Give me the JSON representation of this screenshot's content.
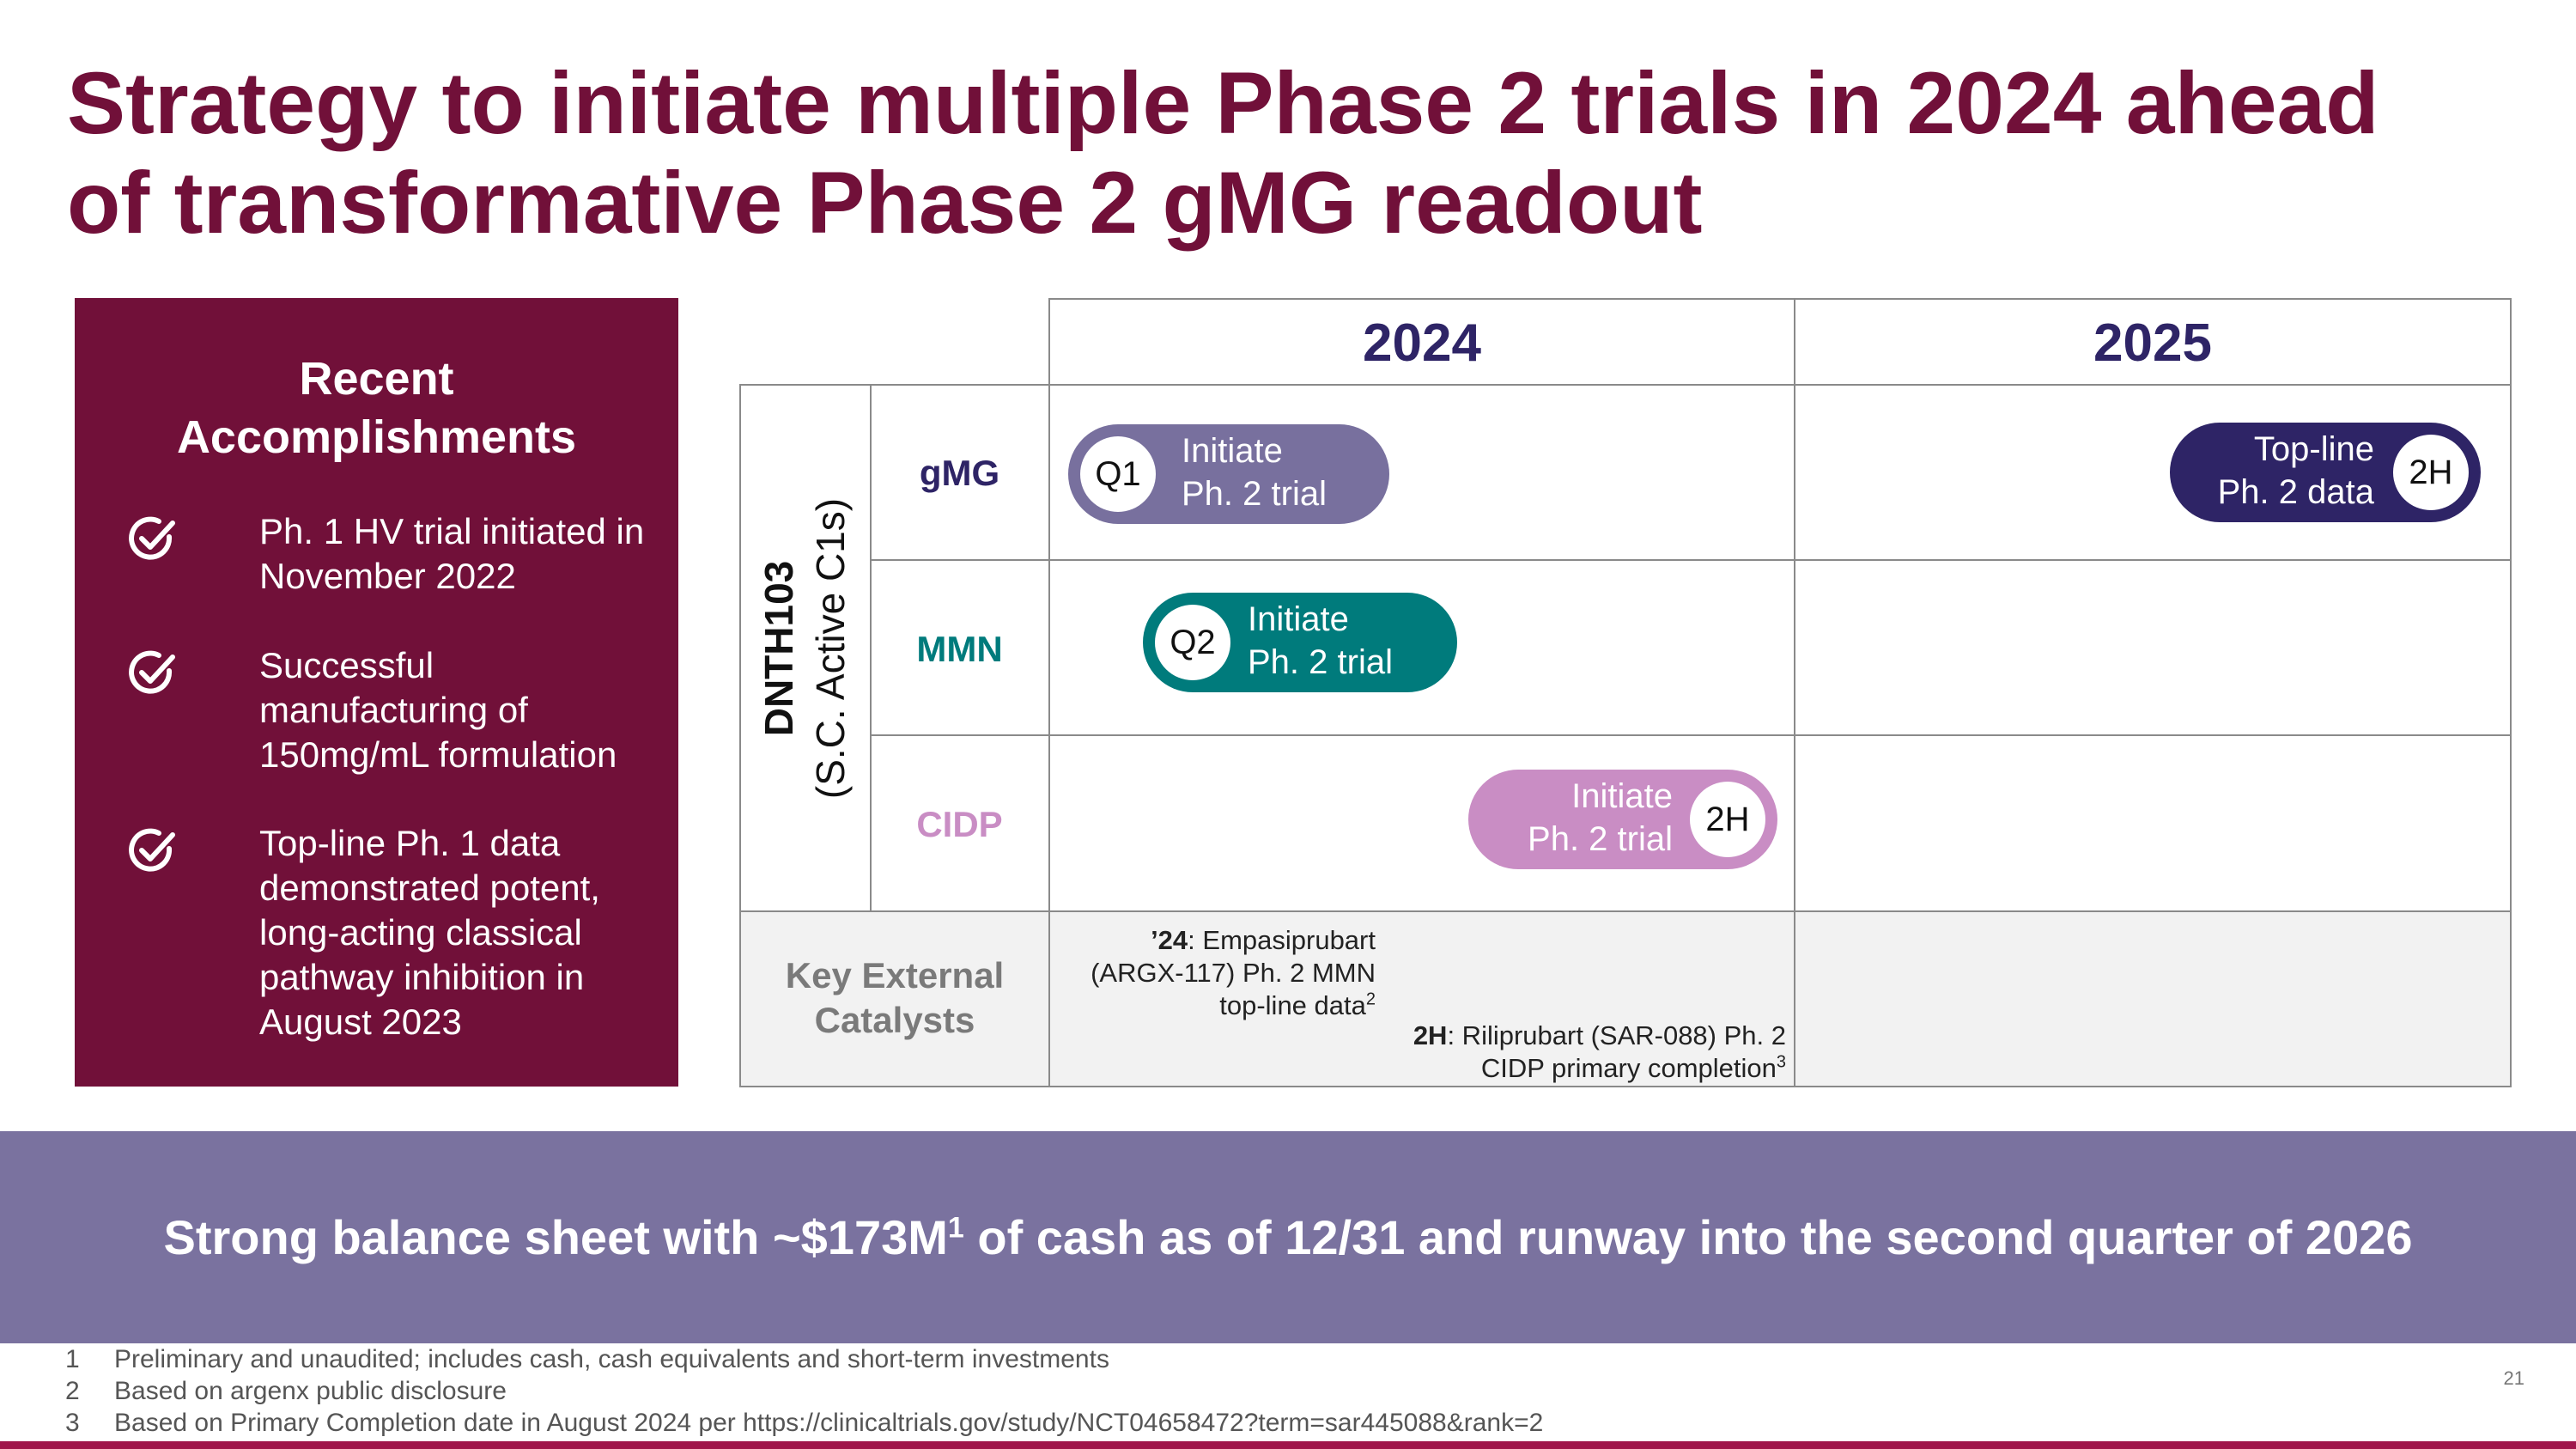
{
  "title": {
    "line1": "Strategy to initiate multiple Phase 2 trials in 2024 ahead",
    "line2": "of transformative Phase 2 gMG readout"
  },
  "accomplishments": {
    "heading_line1": "Recent",
    "heading_line2": "Accomplishments",
    "icon": "check-circle-icon",
    "items": [
      {
        "lines": [
          "Ph. 1 HV trial initiated in",
          "November 2022"
        ]
      },
      {
        "lines": [
          "Successful",
          "manufacturing of",
          "150mg/mL formulation"
        ]
      },
      {
        "lines": [
          "Top-line Ph. 1 data",
          "demonstrated potent,",
          "long-acting classical",
          "pathway inhibition in",
          "August 2023"
        ]
      }
    ]
  },
  "timeline": {
    "years": [
      "2024",
      "2025"
    ],
    "drug_line1": "DNTH103",
    "drug_line2": "(S.C. Active C1s)",
    "rows": [
      {
        "label": "gMG",
        "color": "#2e2466"
      },
      {
        "label": "MMN",
        "color": "#007b7c"
      },
      {
        "label": "CIDP",
        "color": "#c98dc4"
      }
    ],
    "milestones": [
      {
        "badge": "Q1",
        "line1": "Initiate",
        "line2": "Ph. 2 trial",
        "color": "#78709e"
      },
      {
        "badge": "2H",
        "line1": "Top-line",
        "line2": "Ph. 2 data",
        "color": "#2e2466"
      },
      {
        "badge": "Q2",
        "line1": "Initiate",
        "line2": "Ph. 2 trial",
        "color": "#007b7c"
      },
      {
        "badge": "2H",
        "line1": "Initiate",
        "line2": "Ph. 2 trial",
        "color": "#c98dc4"
      }
    ],
    "catalysts": {
      "label_line1": "Key External",
      "label_line2": "Catalysts",
      "note1": {
        "bold": "’24",
        "line1_rest": ": Empasiprubart",
        "line2": "(ARGX-117) Ph. 2 MMN",
        "line3": "top-line data",
        "sup": "2"
      },
      "note2": {
        "bold": "2H",
        "line1_rest": ": Riliprubart (SAR-088) Ph. 2",
        "line2": "CIDP primary completion",
        "sup": "3"
      }
    }
  },
  "banner": {
    "text_before": "Strong balance sheet with ~$173M",
    "sup": "1",
    "text_after": " of cash as of 12/31 and runway into the second quarter of 2026"
  },
  "footnotes": [
    {
      "num": "1",
      "text": "Preliminary and unaudited; includes cash, cash equivalents and short-term investments"
    },
    {
      "num": "2",
      "text": "Based on argenx public disclosure"
    },
    {
      "num": "3",
      "text": "Based on Primary Completion date in August 2024 per https://clinicaltrials.gov/study/NCT04658472?term=sar445088&rank=2"
    }
  ],
  "page_number": "21",
  "colors": {
    "brand": "#711039",
    "navy": "#2e2466",
    "banner": "#7a729f",
    "bottom_rule": "#a0164a"
  }
}
